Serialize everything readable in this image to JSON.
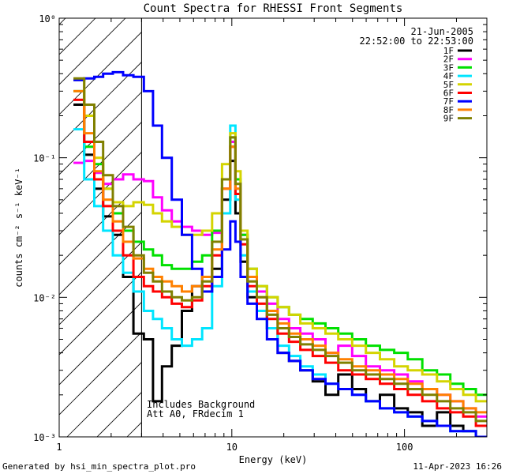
{
  "chart_data": {
    "type": "line",
    "title": "Count Spectra for RHESSI Front Segments",
    "xlabel": "Energy (keV)",
    "ylabel": "counts cm⁻² s⁻¹ keV⁻¹",
    "xscale": "log",
    "yscale": "log",
    "xlim": [
      1,
      300
    ],
    "ylim": [
      0.001,
      1
    ],
    "xticks": [
      {
        "value": 1,
        "label": "1"
      },
      {
        "value": 10,
        "label": "10"
      },
      {
        "value": 100,
        "label": "100"
      }
    ],
    "yticks": [
      {
        "value": 1,
        "label": "10⁰"
      },
      {
        "value": 0.1,
        "label": "10⁻¹"
      },
      {
        "value": 0.01,
        "label": "10⁻²"
      },
      {
        "value": 0.001,
        "label": "10⁻³"
      }
    ],
    "date": "21-Jun-2005",
    "time_range": "22:52:00 to 22:53:00",
    "hatch_region_upper_keV": 3,
    "annotations": [
      "Includes Background",
      "Att A0, FRdecim 1"
    ],
    "footer_left": "Generated by hsi_min_spectra_plot.pro",
    "footer_right": "11-Apr-2023 16:26",
    "series": [
      {
        "name": "1F",
        "color": "#000000",
        "x": [
          1.3,
          1.5,
          1.7,
          1.9,
          2.2,
          2.5,
          2.9,
          3.3,
          3.7,
          4.2,
          4.8,
          5.5,
          6.3,
          7.2,
          8.2,
          9.4,
          10.2,
          10.8,
          11.7,
          13,
          15,
          17,
          20,
          23,
          27,
          32,
          38,
          45,
          55,
          65,
          80,
          95,
          115,
          140,
          170,
          200,
          240,
          280
        ],
        "values": [
          0.24,
          0.105,
          0.06,
          0.038,
          0.028,
          0.014,
          0.0055,
          0.005,
          0.0018,
          0.0032,
          0.0045,
          0.008,
          0.012,
          0.011,
          0.016,
          0.05,
          0.095,
          0.04,
          0.018,
          0.01,
          0.008,
          0.006,
          0.004,
          0.0035,
          0.003,
          0.0025,
          0.002,
          0.0028,
          0.0022,
          0.0018,
          0.002,
          0.0016,
          0.0015,
          0.0012,
          0.0015,
          0.0012,
          0.0011,
          0.001
        ]
      },
      {
        "name": "2F",
        "color": "#ff00ff",
        "x": [
          1.3,
          1.5,
          1.7,
          1.9,
          2.2,
          2.5,
          2.9,
          3.3,
          3.7,
          4.2,
          4.8,
          5.5,
          6.3,
          7.2,
          8.2,
          9.4,
          10.2,
          10.8,
          11.7,
          13,
          15,
          17,
          20,
          23,
          27,
          32,
          38,
          45,
          55,
          65,
          80,
          95,
          115,
          140,
          170,
          200,
          240,
          280
        ],
        "values": [
          0.092,
          0.095,
          0.078,
          0.065,
          0.07,
          0.076,
          0.07,
          0.068,
          0.052,
          0.042,
          0.035,
          0.032,
          0.03,
          0.028,
          0.029,
          0.06,
          0.13,
          0.06,
          0.028,
          0.014,
          0.011,
          0.009,
          0.007,
          0.006,
          0.0055,
          0.005,
          0.004,
          0.0045,
          0.0038,
          0.0032,
          0.003,
          0.0028,
          0.0025,
          0.0022,
          0.002,
          0.0018,
          0.0016,
          0.0014
        ]
      },
      {
        "name": "3F",
        "color": "#00e000",
        "x": [
          1.3,
          1.5,
          1.7,
          1.9,
          2.2,
          2.5,
          2.9,
          3.3,
          3.7,
          4.2,
          4.8,
          5.5,
          6.3,
          7.2,
          8.2,
          9.4,
          10.2,
          10.8,
          11.7,
          13,
          15,
          17,
          20,
          23,
          27,
          32,
          38,
          45,
          55,
          65,
          80,
          95,
          115,
          140,
          170,
          200,
          240,
          280
        ],
        "values": [
          0.3,
          0.12,
          0.09,
          0.06,
          0.04,
          0.03,
          0.025,
          0.022,
          0.02,
          0.017,
          0.016,
          0.016,
          0.018,
          0.02,
          0.03,
          0.07,
          0.14,
          0.07,
          0.028,
          0.016,
          0.012,
          0.01,
          0.0085,
          0.0075,
          0.007,
          0.0065,
          0.006,
          0.0055,
          0.005,
          0.0045,
          0.0042,
          0.004,
          0.0036,
          0.003,
          0.0028,
          0.0024,
          0.0022,
          0.002
        ]
      },
      {
        "name": "4F",
        "color": "#00e5ff",
        "x": [
          1.3,
          1.5,
          1.7,
          1.9,
          2.2,
          2.5,
          2.9,
          3.3,
          3.7,
          4.2,
          4.8,
          5.5,
          6.3,
          7.2,
          8.2,
          9.4,
          10.2,
          10.8,
          11.7,
          13,
          15,
          17,
          20,
          23,
          27,
          32,
          38,
          45,
          55,
          65,
          80,
          95,
          115,
          140,
          170,
          200,
          240,
          280
        ],
        "values": [
          0.16,
          0.07,
          0.045,
          0.03,
          0.02,
          0.015,
          0.011,
          0.008,
          0.007,
          0.006,
          0.005,
          0.0045,
          0.005,
          0.006,
          0.012,
          0.04,
          0.17,
          0.05,
          0.02,
          0.011,
          0.008,
          0.006,
          0.0045,
          0.0038,
          0.0032,
          0.0028,
          0.0024,
          0.0022,
          0.002,
          0.0018,
          0.0016,
          0.0015,
          0.0014,
          0.0013,
          0.0012,
          0.0011,
          0.0011,
          0.001
        ]
      },
      {
        "name": "5F",
        "color": "#d4d400",
        "x": [
          1.3,
          1.5,
          1.7,
          1.9,
          2.2,
          2.5,
          2.9,
          3.3,
          3.7,
          4.2,
          4.8,
          5.5,
          6.3,
          7.2,
          8.2,
          9.4,
          10.2,
          10.8,
          11.7,
          13,
          15,
          17,
          20,
          23,
          27,
          32,
          38,
          45,
          55,
          65,
          80,
          95,
          115,
          140,
          170,
          200,
          240,
          280
        ],
        "values": [
          0.36,
          0.2,
          0.1,
          0.06,
          0.048,
          0.045,
          0.048,
          0.046,
          0.04,
          0.035,
          0.032,
          0.028,
          0.028,
          0.03,
          0.04,
          0.09,
          0.15,
          0.08,
          0.03,
          0.016,
          0.012,
          0.01,
          0.0085,
          0.0075,
          0.0065,
          0.006,
          0.0055,
          0.005,
          0.0045,
          0.004,
          0.0036,
          0.0032,
          0.003,
          0.0028,
          0.0025,
          0.0022,
          0.002,
          0.0018
        ]
      },
      {
        "name": "6F",
        "color": "#ff0000",
        "x": [
          1.3,
          1.5,
          1.7,
          1.9,
          2.2,
          2.5,
          2.9,
          3.3,
          3.7,
          4.2,
          4.8,
          5.5,
          6.3,
          7.2,
          8.2,
          9.4,
          10.2,
          10.8,
          11.7,
          13,
          15,
          17,
          20,
          23,
          27,
          32,
          38,
          45,
          55,
          65,
          80,
          95,
          115,
          140,
          170,
          200,
          240,
          280
        ],
        "values": [
          0.26,
          0.13,
          0.07,
          0.045,
          0.03,
          0.02,
          0.014,
          0.012,
          0.011,
          0.01,
          0.009,
          0.0085,
          0.0095,
          0.012,
          0.02,
          0.06,
          0.12,
          0.055,
          0.024,
          0.012,
          0.009,
          0.007,
          0.0055,
          0.0048,
          0.0042,
          0.0038,
          0.0034,
          0.003,
          0.0028,
          0.0026,
          0.0024,
          0.0022,
          0.002,
          0.0018,
          0.0016,
          0.0015,
          0.0014,
          0.0012
        ]
      },
      {
        "name": "7F",
        "color": "#0000ff",
        "x": [
          1.3,
          1.5,
          1.7,
          1.9,
          2.2,
          2.5,
          2.9,
          3.3,
          3.7,
          4.2,
          4.8,
          5.5,
          6.3,
          7.2,
          8.2,
          9.4,
          10.2,
          10.8,
          11.7,
          13,
          15,
          17,
          20,
          23,
          27,
          32,
          38,
          45,
          55,
          65,
          80,
          95,
          115,
          140,
          170,
          200,
          240,
          280
        ],
        "values": [
          0.36,
          0.37,
          0.38,
          0.4,
          0.41,
          0.39,
          0.38,
          0.3,
          0.17,
          0.1,
          0.05,
          0.028,
          0.016,
          0.011,
          0.014,
          0.022,
          0.035,
          0.025,
          0.014,
          0.009,
          0.007,
          0.005,
          0.004,
          0.0035,
          0.003,
          0.0026,
          0.0024,
          0.0022,
          0.002,
          0.0018,
          0.0016,
          0.0015,
          0.0014,
          0.0013,
          0.0012,
          0.0011,
          0.0011,
          0.001
        ]
      },
      {
        "name": "8F",
        "color": "#ff8000",
        "x": [
          1.3,
          1.5,
          1.7,
          1.9,
          2.2,
          2.5,
          2.9,
          3.3,
          3.7,
          4.2,
          4.8,
          5.5,
          6.3,
          7.2,
          8.2,
          9.4,
          10.2,
          10.8,
          11.7,
          13,
          15,
          17,
          20,
          23,
          27,
          32,
          38,
          45,
          55,
          65,
          80,
          95,
          115,
          140,
          170,
          200,
          240,
          280
        ],
        "values": [
          0.3,
          0.15,
          0.08,
          0.05,
          0.035,
          0.025,
          0.019,
          0.016,
          0.014,
          0.013,
          0.012,
          0.011,
          0.012,
          0.014,
          0.022,
          0.06,
          0.12,
          0.06,
          0.026,
          0.014,
          0.01,
          0.008,
          0.0065,
          0.0055,
          0.005,
          0.0045,
          0.004,
          0.0036,
          0.0032,
          0.003,
          0.0028,
          0.0026,
          0.0024,
          0.0022,
          0.002,
          0.0018,
          0.0016,
          0.0015
        ]
      },
      {
        "name": "9F",
        "color": "#808000",
        "x": [
          1.3,
          1.5,
          1.7,
          1.9,
          2.2,
          2.5,
          2.9,
          3.3,
          3.7,
          4.2,
          4.8,
          5.5,
          6.3,
          7.2,
          8.2,
          9.4,
          10.2,
          10.8,
          11.7,
          13,
          15,
          17,
          20,
          23,
          27,
          32,
          38,
          45,
          55,
          65,
          80,
          95,
          115,
          140,
          170,
          200,
          240,
          280
        ],
        "values": [
          0.37,
          0.24,
          0.13,
          0.075,
          0.045,
          0.032,
          0.02,
          0.015,
          0.013,
          0.011,
          0.01,
          0.0095,
          0.01,
          0.013,
          0.025,
          0.07,
          0.14,
          0.065,
          0.026,
          0.013,
          0.01,
          0.0075,
          0.006,
          0.0052,
          0.0046,
          0.0042,
          0.0038,
          0.0034,
          0.003,
          0.0028,
          0.0026,
          0.0024,
          0.0022,
          0.002,
          0.0018,
          0.0016,
          0.0015,
          0.0013
        ]
      }
    ]
  }
}
